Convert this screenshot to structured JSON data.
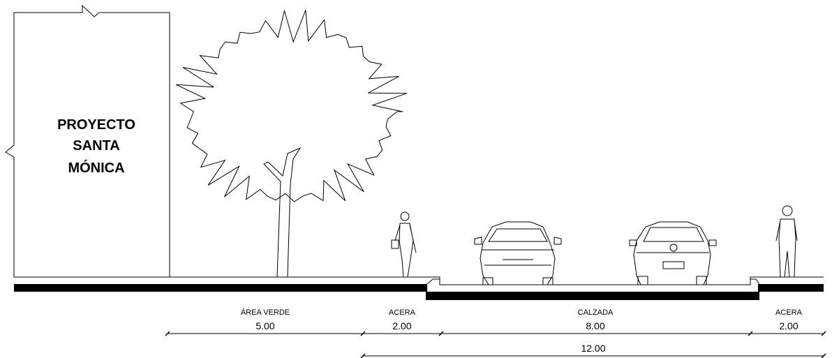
{
  "building": {
    "label_lines": [
      "PROYECTO",
      "SANTA",
      "MÓNICA"
    ]
  },
  "dimensions": [
    {
      "label": "ÁREA VERDE",
      "value": "5.00"
    },
    {
      "label": "ACERA",
      "value": "2.00"
    },
    {
      "label": "CALZADA",
      "value": "8.00"
    },
    {
      "label": "ACERA",
      "value": "2.00"
    }
  ],
  "total": {
    "value": "12.00"
  }
}
